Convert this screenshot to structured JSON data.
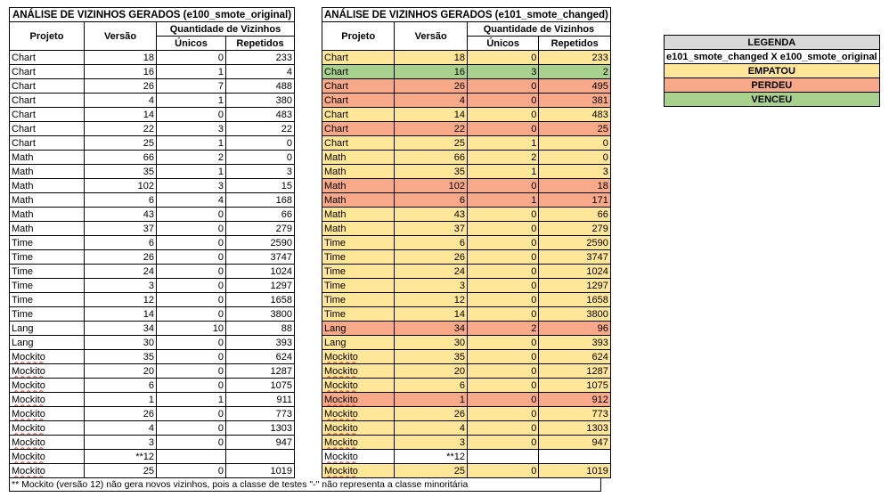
{
  "colors": {
    "empatou": "#ffe699",
    "perdeu": "#f8a98a",
    "venceu": "#a9d18e",
    "header_gray": "#d9d9d9"
  },
  "table_original": {
    "title": "ANÁLISE DE VIZINHOS GERADOS (e100_smote_original)",
    "headers": {
      "projeto": "Projeto",
      "versao": "Versão",
      "group": "Quantidade de Vizinhos",
      "unicos": "Únicos",
      "repetidos": "Repetidos"
    },
    "rows": [
      [
        "Chart",
        "18",
        "0",
        "233"
      ],
      [
        "Chart",
        "16",
        "1",
        "4"
      ],
      [
        "Chart",
        "26",
        "7",
        "488"
      ],
      [
        "Chart",
        "4",
        "1",
        "380"
      ],
      [
        "Chart",
        "14",
        "0",
        "483"
      ],
      [
        "Chart",
        "22",
        "3",
        "22"
      ],
      [
        "Chart",
        "25",
        "1",
        "0"
      ],
      [
        "Math",
        "66",
        "2",
        "0"
      ],
      [
        "Math",
        "35",
        "1",
        "3"
      ],
      [
        "Math",
        "102",
        "3",
        "15"
      ],
      [
        "Math",
        "6",
        "4",
        "168"
      ],
      [
        "Math",
        "43",
        "0",
        "66"
      ],
      [
        "Math",
        "37",
        "0",
        "279"
      ],
      [
        "Time",
        "6",
        "0",
        "2590"
      ],
      [
        "Time",
        "26",
        "0",
        "3747"
      ],
      [
        "Time",
        "24",
        "0",
        "1024"
      ],
      [
        "Time",
        "3",
        "0",
        "1297"
      ],
      [
        "Time",
        "12",
        "0",
        "1658"
      ],
      [
        "Time",
        "14",
        "0",
        "3800"
      ],
      [
        "Lang",
        "34",
        "10",
        "88"
      ],
      [
        "Lang",
        "30",
        "0",
        "393"
      ],
      [
        "Mockito",
        "35",
        "0",
        "624"
      ],
      [
        "Mockito",
        "20",
        "0",
        "1287"
      ],
      [
        "Mockito",
        "6",
        "0",
        "1075"
      ],
      [
        "Mockito",
        "1",
        "1",
        "911"
      ],
      [
        "Mockito",
        "26",
        "0",
        "773"
      ],
      [
        "Mockito",
        "4",
        "0",
        "1303"
      ],
      [
        "Mockito",
        "3",
        "0",
        "947"
      ],
      [
        "Mockito",
        "**12",
        "",
        ""
      ],
      [
        "Mockito",
        "25",
        "0",
        "1019"
      ]
    ]
  },
  "table_changed": {
    "title": "ANÁLISE DE VIZINHOS GERADOS (e101_smote_changed)",
    "headers": {
      "projeto": "Projeto",
      "versao": "Versão",
      "group": "Quantidade de Vizinhos",
      "unicos": "Únicos",
      "repetidos": "Repetidos"
    },
    "rows": [
      [
        "Chart",
        "18",
        "0",
        "233",
        "empatou"
      ],
      [
        "Chart",
        "16",
        "3",
        "2",
        "venceu"
      ],
      [
        "Chart",
        "26",
        "0",
        "495",
        "perdeu"
      ],
      [
        "Chart",
        "4",
        "0",
        "381",
        "perdeu"
      ],
      [
        "Chart",
        "14",
        "0",
        "483",
        "empatou"
      ],
      [
        "Chart",
        "22",
        "0",
        "25",
        "perdeu"
      ],
      [
        "Chart",
        "25",
        "1",
        "0",
        "empatou"
      ],
      [
        "Math",
        "66",
        "2",
        "0",
        "empatou"
      ],
      [
        "Math",
        "35",
        "1",
        "3",
        "empatou"
      ],
      [
        "Math",
        "102",
        "0",
        "18",
        "perdeu"
      ],
      [
        "Math",
        "6",
        "1",
        "171",
        "perdeu"
      ],
      [
        "Math",
        "43",
        "0",
        "66",
        "empatou"
      ],
      [
        "Math",
        "37",
        "0",
        "279",
        "empatou"
      ],
      [
        "Time",
        "6",
        "0",
        "2590",
        "empatou"
      ],
      [
        "Time",
        "26",
        "0",
        "3747",
        "empatou"
      ],
      [
        "Time",
        "24",
        "0",
        "1024",
        "empatou"
      ],
      [
        "Time",
        "3",
        "0",
        "1297",
        "empatou"
      ],
      [
        "Time",
        "12",
        "0",
        "1658",
        "empatou"
      ],
      [
        "Time",
        "14",
        "0",
        "3800",
        "empatou"
      ],
      [
        "Lang",
        "34",
        "2",
        "96",
        "perdeu"
      ],
      [
        "Lang",
        "30",
        "0",
        "393",
        "empatou"
      ],
      [
        "Mockito",
        "35",
        "0",
        "624",
        "empatou"
      ],
      [
        "Mockito",
        "20",
        "0",
        "1287",
        "empatou"
      ],
      [
        "Mockito",
        "6",
        "0",
        "1075",
        "empatou"
      ],
      [
        "Mockito",
        "1",
        "0",
        "912",
        "perdeu"
      ],
      [
        "Mockito",
        "26",
        "0",
        "773",
        "empatou"
      ],
      [
        "Mockito",
        "4",
        "0",
        "1303",
        "empatou"
      ],
      [
        "Mockito",
        "3",
        "0",
        "947",
        "empatou"
      ],
      [
        "Mockito",
        "**12",
        "",
        "",
        "none"
      ],
      [
        "Mockito",
        "25",
        "0",
        "1019",
        "empatou"
      ]
    ]
  },
  "legend": {
    "title": "LEGENDA",
    "subtitle": "e101_smote_changed X e100_smote_original",
    "items": [
      {
        "label": "EMPATOU",
        "status": "empatou"
      },
      {
        "label": "PERDEU",
        "status": "perdeu"
      },
      {
        "label": "VENCEU",
        "status": "venceu"
      }
    ]
  },
  "footnote": "** Mockito (versão 12) não gera novos vizinhos, pois a classe de testes \"-\" não representa a classe minoritária"
}
